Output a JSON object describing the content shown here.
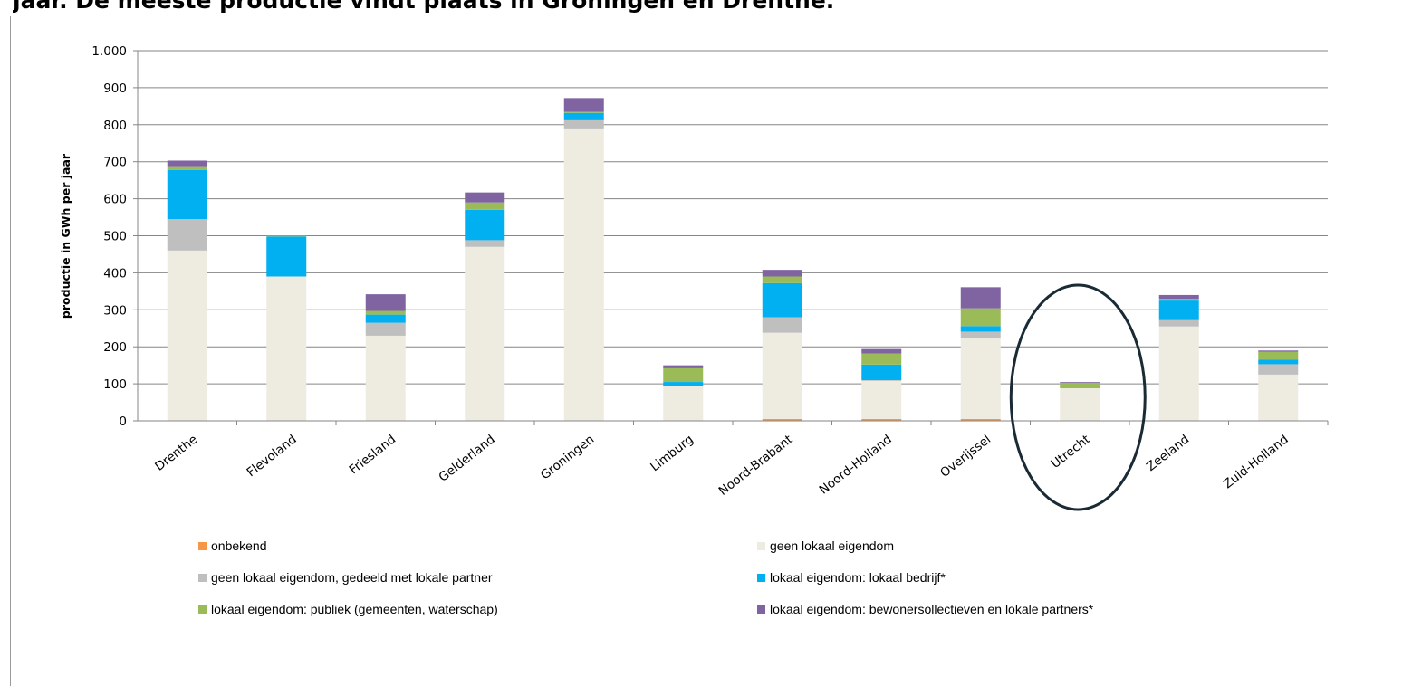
{
  "page": {
    "title": "jaar. De meeste productie vindt plaats in Groningen en Drenthe."
  },
  "chart_data": {
    "type": "bar",
    "stacked": true,
    "title": "",
    "xlabel": "",
    "ylabel": "productie in GWh per jaar",
    "ylim": [
      0,
      1000
    ],
    "yticks": [
      0,
      100,
      200,
      300,
      400,
      500,
      600,
      700,
      800,
      900,
      1000
    ],
    "ytick_labels": [
      "0",
      "100",
      "200",
      "300",
      "400",
      "500",
      "600",
      "700",
      "800",
      "900",
      "1.000"
    ],
    "grid": true,
    "legend_position": "bottom",
    "categories": [
      "Drenthe",
      "Flevoland",
      "Friesland",
      "Gelderland",
      "Groningen",
      "Limburg",
      "Noord-Brabant",
      "Noord-Holland",
      "Overijssel",
      "Utrecht",
      "Zeeland",
      "Zuid-Holland"
    ],
    "series": [
      {
        "name": "onbekend",
        "color": "#f79646",
        "values": [
          0,
          0,
          0,
          0,
          0,
          0,
          5,
          5,
          5,
          0,
          0,
          0
        ]
      },
      {
        "name": "geen lokaal eigendom",
        "color": "#eeece1",
        "values": [
          460,
          390,
          230,
          470,
          790,
          95,
          233,
          103,
          218,
          88,
          255,
          125
        ]
      },
      {
        "name": "geen lokaal eigendom, gedeeld met lokale partner",
        "color": "#bfbfbf",
        "values": [
          85,
          0,
          35,
          18,
          22,
          0,
          42,
          2,
          18,
          0,
          17,
          28
        ]
      },
      {
        "name": "lokaal eigendom: lokaal bedrijf*",
        "color": "#00b0f0",
        "values": [
          133,
          108,
          22,
          82,
          20,
          10,
          92,
          42,
          15,
          0,
          53,
          12
        ]
      },
      {
        "name": "lokaal eigendom: publiek (gemeenten, waterschap)",
        "color": "#9bbb59",
        "values": [
          10,
          2,
          10,
          20,
          3,
          37,
          18,
          30,
          48,
          15,
          5,
          22
        ]
      },
      {
        "name": "lokaal eigendom: bewonersollectieven en lokale partners*",
        "color": "#8064a2",
        "values": [
          15,
          0,
          45,
          27,
          37,
          8,
          18,
          12,
          57,
          2,
          10,
          3
        ]
      }
    ]
  },
  "annotation": {
    "shape": "ellipse",
    "target_category": "Utrecht",
    "color": "#1a2b36"
  }
}
